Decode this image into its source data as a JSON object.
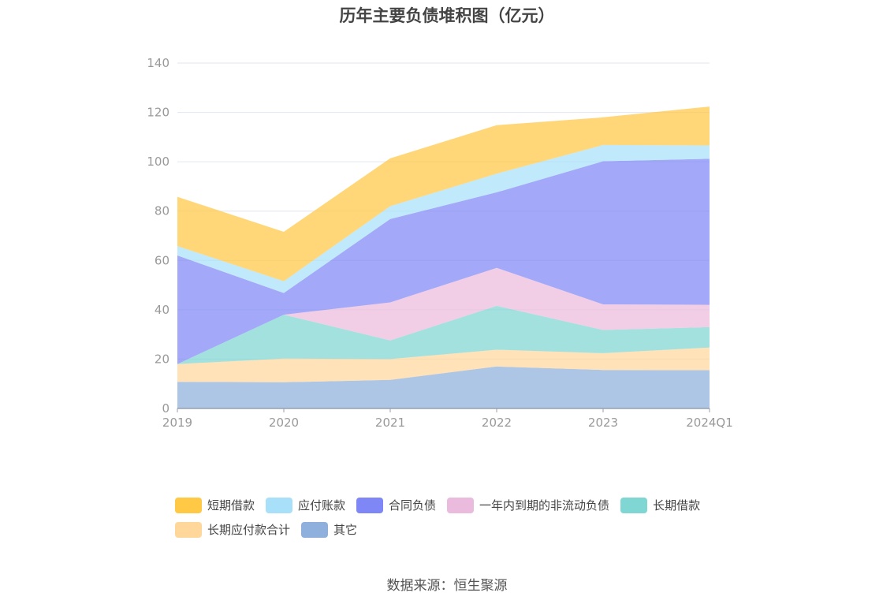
{
  "chart_data": {
    "type": "area",
    "stacked": true,
    "title": "历年主要负债堆积图（亿元）",
    "x": [
      "2019",
      "2020",
      "2021",
      "2022",
      "2023",
      "2024Q1"
    ],
    "y_ticks": [
      "0",
      "20",
      "40",
      "60",
      "80",
      "100",
      "120",
      "140"
    ],
    "ylim": [
      0,
      140
    ],
    "grid": true,
    "legend_position": "bottom",
    "series": [
      {
        "name": "其它",
        "color": "#8fb0dd",
        "values": [
          10.8,
          10.6,
          11.6,
          17.0,
          15.6,
          15.5
        ]
      },
      {
        "name": "长期应付款合计",
        "color": "#ffd79b",
        "values": [
          7.2,
          9.6,
          8.4,
          6.8,
          6.8,
          9.2
        ]
      },
      {
        "name": "长期借款",
        "color": "#7fd6d3",
        "values": [
          0.0,
          17.8,
          7.6,
          17.8,
          9.4,
          8.3
        ]
      },
      {
        "name": "一年内到期的非流动负债",
        "color": "#ebbbdd",
        "values": [
          0.0,
          0.0,
          15.4,
          15.4,
          10.4,
          9.0
        ]
      },
      {
        "name": "合同负债",
        "color": "#7f86f5",
        "values": [
          44.0,
          8.8,
          33.8,
          30.6,
          58.0,
          59.2
        ]
      },
      {
        "name": "应付账款",
        "color": "#a8e0fa",
        "values": [
          3.8,
          4.8,
          5.2,
          7.6,
          6.6,
          5.4
        ]
      },
      {
        "name": "短期借款",
        "color": "#ffc845",
        "values": [
          20.0,
          20.0,
          19.4,
          19.6,
          11.2,
          15.8
        ]
      }
    ]
  },
  "legend": [
    {
      "label": "短期借款",
      "color": "#ffc845"
    },
    {
      "label": "应付账款",
      "color": "#a8e0fa"
    },
    {
      "label": "合同负债",
      "color": "#7f86f5"
    },
    {
      "label": "一年内到期的非流动负债",
      "color": "#ebbbdd"
    },
    {
      "label": "长期借款",
      "color": "#7fd6d3"
    },
    {
      "label": "长期应付款合计",
      "color": "#ffd79b"
    },
    {
      "label": "其它",
      "color": "#8fb0dd"
    }
  ],
  "source": "数据来源：恒生聚源"
}
